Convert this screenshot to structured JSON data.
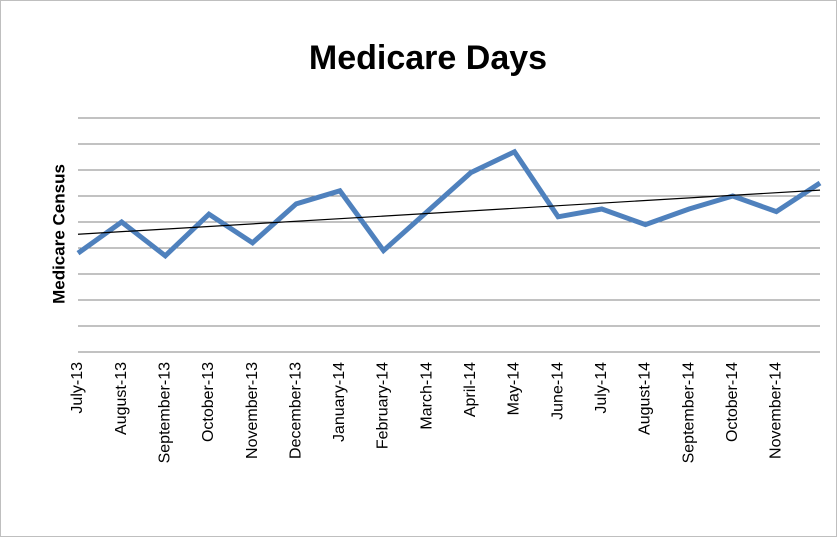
{
  "chart_data": {
    "type": "line",
    "title": "Medicare Days",
    "y_label": "Medicare Census",
    "categories": [
      "July-13",
      "August-13",
      "September-13",
      "October-13",
      "November-13",
      "December-13",
      "January-14",
      "February-14",
      "March-14",
      "April-14",
      "May-14",
      "June-14",
      "July-14",
      "August-14",
      "September-14",
      "October-14",
      "November-14",
      null
    ],
    "series": [
      {
        "name": "Medicare Census",
        "color": "#4f81bd",
        "values": [
          3.8,
          5.0,
          3.7,
          5.3,
          4.2,
          5.7,
          6.2,
          3.9,
          5.4,
          6.9,
          7.7,
          5.2,
          5.5,
          4.9,
          5.5,
          6.0,
          5.4,
          6.5
        ]
      }
    ],
    "trendline": true,
    "ylim": [
      0,
      9
    ],
    "yticks": [
      0,
      1,
      2,
      3,
      4,
      5,
      6,
      7,
      8,
      9
    ],
    "grid": true
  }
}
